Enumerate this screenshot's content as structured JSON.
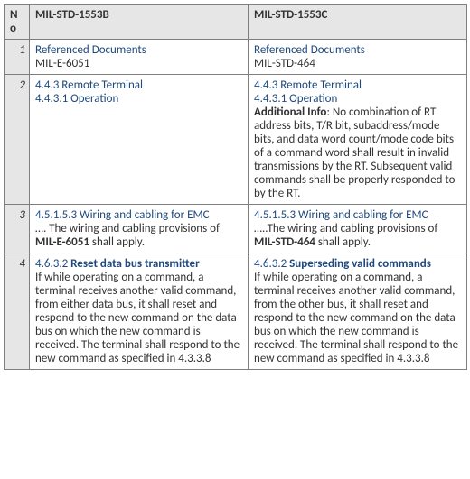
{
  "columns": {
    "no": "No",
    "b": "MIL-STD-1553B",
    "c": "MIL-STD-1553C"
  },
  "rows": [
    {
      "no": "1",
      "b": "<span class=\"heading\">Referenced Documents</span><br>MIL-E-6051",
      "c": "<span class=\"heading\">Referenced Documents</span><br>MIL-STD-464"
    },
    {
      "no": "2",
      "b": "<span class=\"heading\">4.4.3 Remote Terminal</span><br><span class=\"heading\">4.4.3.1 Operation</span>",
      "c": "<span class=\"heading\">4.4.3 Remote Terminal</span><br><span class=\"heading\">4.4.3.1 Operation</span><br><span class=\"bold\">Additional Info</span>: No combination of RT address bits, T/R bit, subaddress/mode bits, and data word count/mode code bits of a command word shall result in invalid transmissions by the RT. Subsequent valid commands shall be properly responded to by the RT."
    },
    {
      "no": "3",
      "b": "<span class=\"heading\">4.5.1.5.3 Wiring and cabling for EMC</span><br>…. The wiring and cabling provisions of <span class=\"bold\">MIL-E-6051</span> shall apply.",
      "c": "<span class=\"heading\">4.5.1.5.3 Wiring and cabling for EMC</span><br>…..The wiring and cabling provisions of <span class=\"bold\">MIL-STD-464</span> shall apply."
    },
    {
      "no": "4",
      "b": "<span class=\"heading\">4.6.3.2 <span class=\"bold\">Reset data bus transmitter</span></span><br>If while operating on a command, a terminal receives another valid command, from either data bus, it shall reset and respond to the new command on the data bus on which the new command is received. The terminal shall respond to the new command as specified in 4.3.3.8",
      "c": "<span class=\"heading\">4.6.3.2 <span class=\"bold\">Superseding valid commands</span></span><br>If while operating on a command, a terminal receives another valid command, from the other bus, it shall reset and respond to the new command on the data bus on which the new command is received. The terminal shall respond to the new command as specified in 4.3.3.8"
    }
  ]
}
